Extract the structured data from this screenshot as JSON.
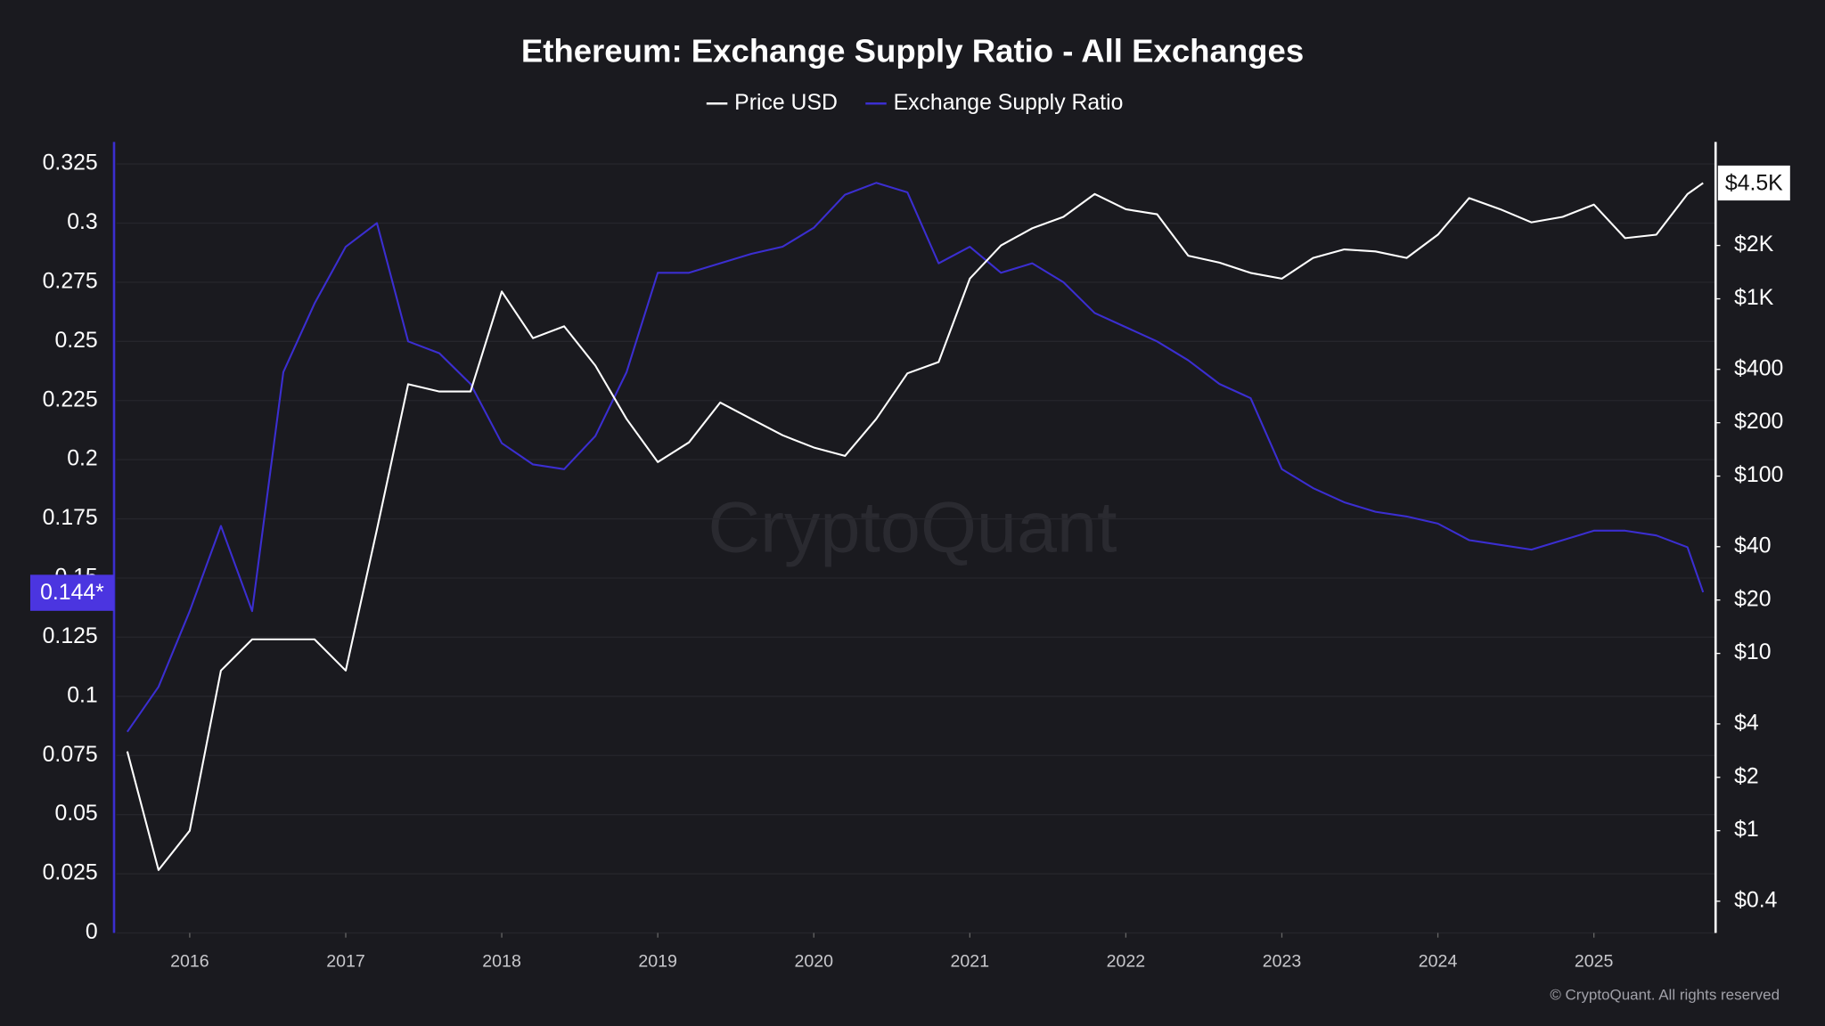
{
  "chart_data": {
    "type": "line",
    "title": "Ethereum: Exchange Supply Ratio - All Exchanges",
    "footer": "© CryptoQuant. All rights reserved",
    "watermark": "CryptoQuant",
    "x": [
      2015.6,
      2015.8,
      2016.0,
      2016.2,
      2016.4,
      2016.6,
      2016.8,
      2017.0,
      2017.2,
      2017.4,
      2017.6,
      2017.8,
      2018.0,
      2018.2,
      2018.4,
      2018.6,
      2018.8,
      2019.0,
      2019.2,
      2019.4,
      2019.6,
      2019.8,
      2020.0,
      2020.2,
      2020.4,
      2020.6,
      2020.8,
      2021.0,
      2021.2,
      2021.4,
      2021.6,
      2021.8,
      2022.0,
      2022.2,
      2022.4,
      2022.6,
      2022.8,
      2023.0,
      2023.2,
      2023.4,
      2023.6,
      2023.8,
      2024.0,
      2024.2,
      2024.4,
      2024.6,
      2024.8,
      2025.0,
      2025.2,
      2025.4,
      2025.6,
      2025.7
    ],
    "xlim": [
      2015.53,
      2025.78
    ],
    "xticks": [
      2016,
      2017,
      2018,
      2019,
      2020,
      2021,
      2022,
      2023,
      2024,
      2025
    ],
    "ylim": [
      0,
      0.3343
    ],
    "yticks": [
      0,
      0.025,
      0.05,
      0.075,
      0.1,
      0.125,
      0.15,
      0.175,
      0.2,
      0.225,
      0.25,
      0.275,
      0.3,
      0.325
    ],
    "y2lim": [
      0.265,
      7674
    ],
    "y2_log": true,
    "y2ticks": [
      {
        "value": 0.4,
        "label": "$0.4"
      },
      {
        "value": 1,
        "label": "$1"
      },
      {
        "value": 2,
        "label": "$2"
      },
      {
        "value": 4,
        "label": "$4"
      },
      {
        "value": 10,
        "label": "$10"
      },
      {
        "value": 20,
        "label": "$20"
      },
      {
        "value": 40,
        "label": "$40"
      },
      {
        "value": 100,
        "label": "$100"
      },
      {
        "value": 200,
        "label": "$200"
      },
      {
        "value": 400,
        "label": "$400"
      },
      {
        "value": 1000,
        "label": "$1K"
      },
      {
        "value": 2000,
        "label": "$2K"
      }
    ],
    "grid": true,
    "series": [
      {
        "name": "Exchange Supply Ratio",
        "color": "#3b2ed0",
        "axis": "y",
        "last_label": "0.144*",
        "values": [
          0.085,
          0.104,
          0.136,
          0.172,
          0.136,
          0.237,
          0.266,
          0.29,
          0.3,
          0.25,
          0.245,
          0.232,
          0.207,
          0.198,
          0.196,
          0.21,
          0.237,
          0.279,
          0.279,
          0.283,
          0.287,
          0.29,
          0.298,
          0.312,
          0.317,
          0.313,
          0.283,
          0.29,
          0.279,
          0.283,
          0.275,
          0.262,
          0.256,
          0.25,
          0.242,
          0.232,
          0.226,
          0.196,
          0.188,
          0.182,
          0.178,
          0.176,
          0.173,
          0.166,
          0.164,
          0.162,
          0.166,
          0.17,
          0.17,
          0.168,
          0.163,
          0.144
        ]
      },
      {
        "name": "Price USD",
        "color": "#ffffff",
        "axis": "y2",
        "last_label": "$4.5K",
        "values": [
          2.8,
          0.6,
          1.0,
          8,
          12,
          12,
          12,
          8,
          50,
          330,
          300,
          300,
          1100,
          600,
          700,
          420,
          210,
          120,
          155,
          260,
          210,
          170,
          145,
          130,
          210,
          380,
          440,
          1300,
          2000,
          2500,
          2900,
          3900,
          3200,
          3000,
          1750,
          1600,
          1400,
          1300,
          1700,
          1900,
          1850,
          1700,
          2300,
          3700,
          3200,
          2700,
          2900,
          3400,
          2200,
          2300,
          3900,
          4500
        ]
      }
    ]
  }
}
